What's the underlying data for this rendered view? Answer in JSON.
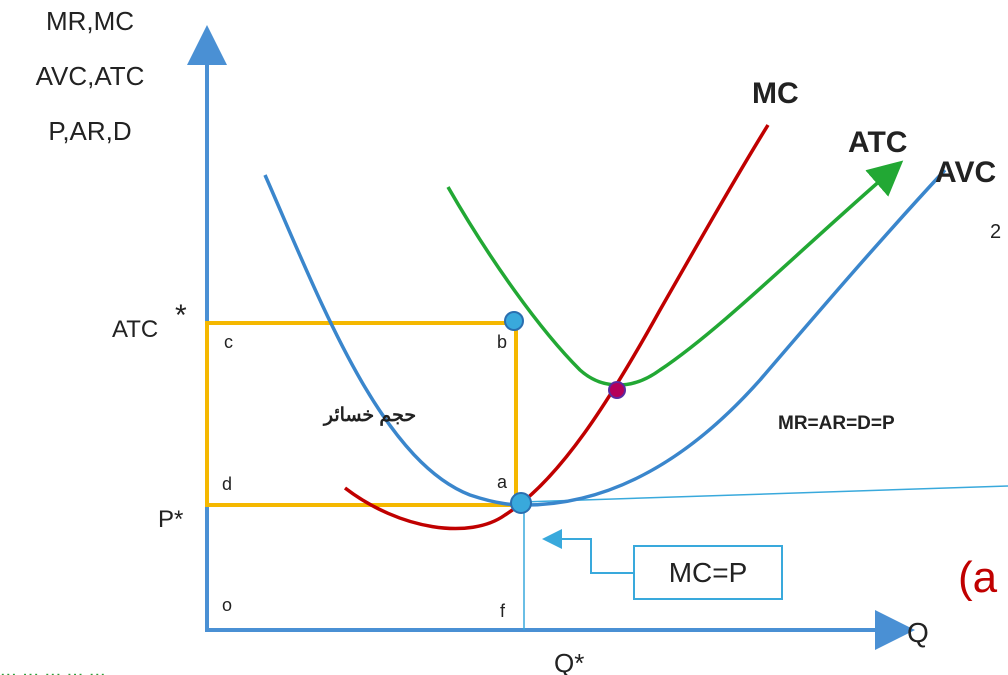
{
  "y_axis_label": [
    "MR,MC",
    "AVC,ATC",
    "P,AR,D"
  ],
  "x_axis_label": "Q",
  "ticks": {
    "atc_star": "ATC",
    "star": "*",
    "p_star": "P*",
    "q_star": "Q*"
  },
  "points": {
    "c": "c",
    "b": "b",
    "d": "d",
    "a": "a",
    "o": "o",
    "f": "f"
  },
  "curves": {
    "mc": "MC",
    "atc": "ATC",
    "avc": "AVC"
  },
  "loss_area_label": "حجم خسائر",
  "demand_label": "MR=AR=D=P",
  "mc_equals_p_box": "MC=P",
  "corner_char": "2",
  "panel_label": "(a",
  "bottom_caption": "... ... ... ... ...",
  "colors": {
    "axis": "#4a90d4",
    "mc": "#c00000",
    "atc": "#22a834",
    "avc": "#3a86cc",
    "rect": "#f5b800",
    "box": "#39a9dc",
    "panel": "#c00000",
    "caption": "#2e9d3a"
  }
}
